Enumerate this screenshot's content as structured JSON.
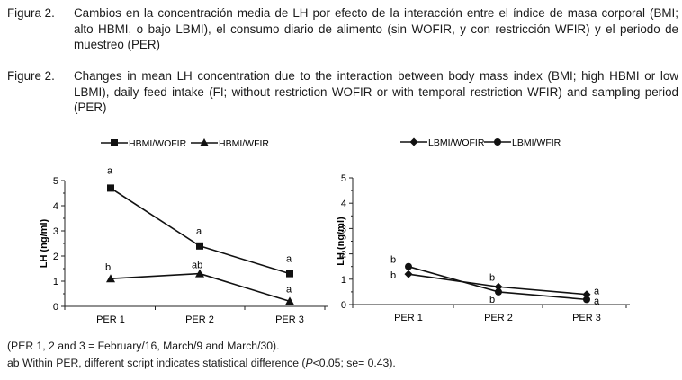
{
  "caption_es": {
    "label": "Figura 2.",
    "text": "Cambios en la concentración media de LH por efecto de la interacción entre el índice de masa corporal (BMI; alto HBMI, o bajo LBMI), el consumo diario de alimento (sin WOFIR, y con restricción WFIR) y el periodo de muestreo (PER)"
  },
  "caption_en": {
    "label": "Figure 2.",
    "text": "Changes in mean LH concentration due to the interaction between body mass index (BMI; high HBMI or low LBMI), daily feed intake (FI; without restriction WOFIR or with temporal restriction WFIR) and sampling period (PER)"
  },
  "chart_data": [
    {
      "type": "line",
      "ylabel": "LH (ng/ml)",
      "categories": [
        "PER 1",
        "PER 2",
        "PER 3"
      ],
      "ylim": [
        0,
        5
      ],
      "yticks": [
        "0",
        "1",
        "2",
        "3",
        "4",
        "5"
      ],
      "series": [
        {
          "name": "HBMI/WOFIR",
          "marker": "square",
          "values": [
            4.7,
            2.4,
            1.3
          ],
          "letters": [
            "a",
            "a",
            "a"
          ]
        },
        {
          "name": "HBMI/WFIR",
          "marker": "triangle",
          "values": [
            1.1,
            1.3,
            0.2
          ],
          "letters": [
            "b",
            "ab",
            "a"
          ]
        }
      ]
    },
    {
      "type": "line",
      "ylabel": "LH (ng/ml)",
      "categories": [
        "PER 1",
        "PER 2",
        "PER 3"
      ],
      "ylim": [
        0,
        5
      ],
      "yticks": [
        "0",
        "1",
        "2",
        "3",
        "4",
        "5"
      ],
      "series": [
        {
          "name": "LBMI/WOFIR",
          "marker": "diamond",
          "values": [
            1.2,
            0.7,
            0.4
          ],
          "letters": [
            "b",
            "b",
            "a"
          ]
        },
        {
          "name": "LBMI/WFIR",
          "marker": "circle",
          "values": [
            1.5,
            0.5,
            0.2
          ],
          "letters": [
            "b",
            "b",
            "a"
          ]
        }
      ]
    }
  ],
  "footnotes": {
    "line1": "(PER 1, 2 and 3 = February/16, March/9 and March/30).",
    "line2_pre": "ab Within PER, different script indicates statistical difference (",
    "line2_p": "P",
    "line2_post": "<0.05; se= 0.43)."
  }
}
